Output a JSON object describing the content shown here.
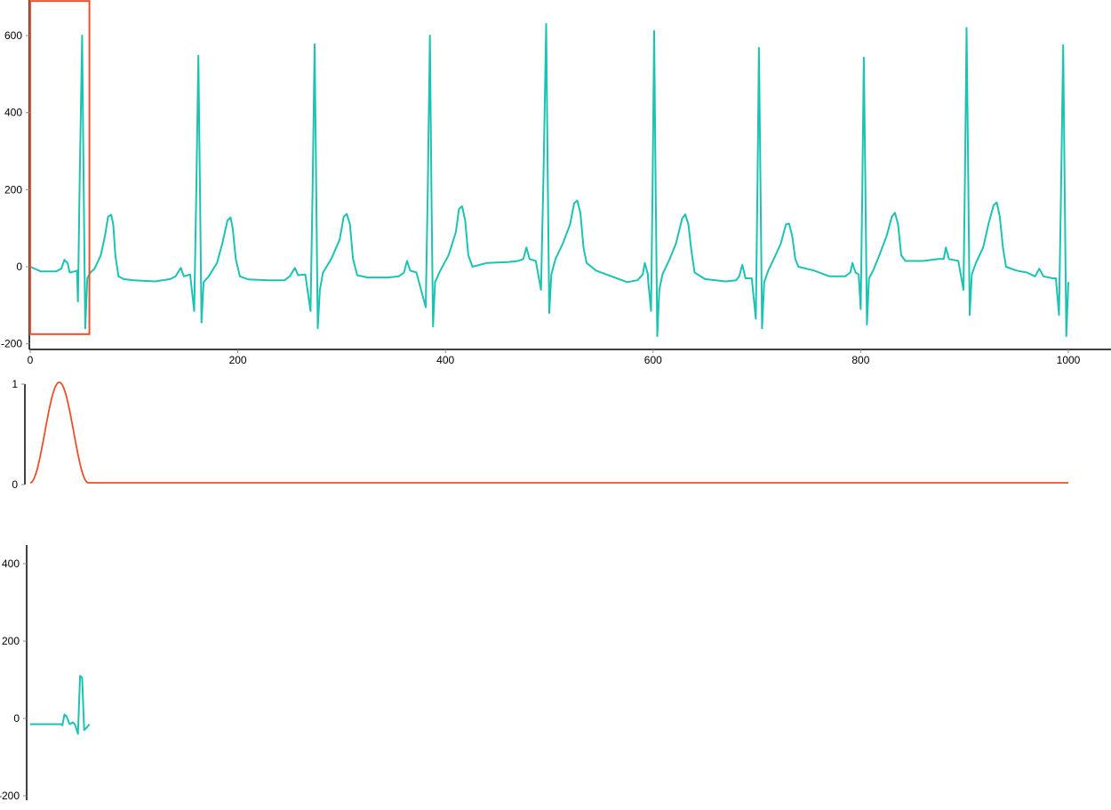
{
  "colors": {
    "signal": "#1cc3b2",
    "window": "#e8512b",
    "axis": "#000000"
  },
  "chart_data": [
    {
      "type": "line",
      "xlim": [
        0,
        1040
      ],
      "ylim": [
        -215,
        692
      ],
      "xticks": [
        0,
        200,
        400,
        600,
        800,
        1000
      ],
      "yticks": [
        -200,
        0,
        200,
        400,
        600
      ],
      "grid": false,
      "window_box": {
        "x": [
          0,
          57
        ],
        "y": [
          -175,
          692
        ]
      },
      "series": [
        {
          "points": [
            [
              0,
              0
            ],
            [
              10,
              -12
            ],
            [
              25,
              -12
            ],
            [
              30,
              -5
            ],
            [
              33,
              18
            ],
            [
              36,
              10
            ],
            [
              38,
              -15
            ],
            [
              43,
              -12
            ],
            [
              45,
              -10
            ],
            [
              46,
              -90
            ],
            [
              47.5,
              200
            ],
            [
              50,
              600
            ],
            [
              51.5,
              200
            ],
            [
              53,
              -160
            ],
            [
              55,
              -30
            ],
            [
              58,
              -15
            ],
            [
              62,
              -5
            ],
            [
              68,
              30
            ],
            [
              72,
              80
            ],
            [
              75,
              130
            ],
            [
              78,
              135
            ],
            [
              80,
              110
            ],
            [
              82,
              30
            ],
            [
              85,
              -25
            ],
            [
              90,
              -32
            ],
            [
              100,
              -35
            ],
            [
              120,
              -38
            ],
            [
              135,
              -32
            ],
            [
              140,
              -25
            ],
            [
              145,
              -3
            ],
            [
              148,
              -25
            ],
            [
              154,
              -20
            ],
            [
              158,
              -115
            ],
            [
              160,
              200
            ],
            [
              162,
              548
            ],
            [
              163.5,
              200
            ],
            [
              165,
              -145
            ],
            [
              167,
              -40
            ],
            [
              172,
              -25
            ],
            [
              180,
              10
            ],
            [
              185,
              60
            ],
            [
              190,
              120
            ],
            [
              193,
              128
            ],
            [
              195,
              100
            ],
            [
              198,
              20
            ],
            [
              202,
              -25
            ],
            [
              210,
              -33
            ],
            [
              230,
              -35
            ],
            [
              245,
              -35
            ],
            [
              250,
              -25
            ],
            [
              255,
              -3
            ],
            [
              258,
              -22
            ],
            [
              265,
              -20
            ],
            [
              270,
              -115
            ],
            [
              272,
              200
            ],
            [
              274,
              578
            ],
            [
              275.5,
              200
            ],
            [
              277,
              -160
            ],
            [
              279,
              -60
            ],
            [
              282,
              -15
            ],
            [
              290,
              20
            ],
            [
              298,
              70
            ],
            [
              302,
              130
            ],
            [
              305,
              137
            ],
            [
              308,
              110
            ],
            [
              311,
              20
            ],
            [
              315,
              -22
            ],
            [
              325,
              -28
            ],
            [
              345,
              -28
            ],
            [
              355,
              -25
            ],
            [
              360,
              -15
            ],
            [
              363,
              15
            ],
            [
              366,
              -10
            ],
            [
              372,
              -15
            ],
            [
              381,
              -105
            ],
            [
              383,
              200
            ],
            [
              385,
              600
            ],
            [
              386.5,
              200
            ],
            [
              388,
              -155
            ],
            [
              390,
              -40
            ],
            [
              395,
              -10
            ],
            [
              403,
              30
            ],
            [
              410,
              90
            ],
            [
              413,
              150
            ],
            [
              416,
              157
            ],
            [
              419,
              120
            ],
            [
              422,
              30
            ],
            [
              426,
              0
            ],
            [
              440,
              10
            ],
            [
              460,
              12
            ],
            [
              470,
              15
            ],
            [
              475,
              20
            ],
            [
              478,
              50
            ],
            [
              481,
              20
            ],
            [
              487,
              15
            ],
            [
              492,
              -60
            ],
            [
              494.5,
              250
            ],
            [
              497,
              630
            ],
            [
              498.5,
              250
            ],
            [
              500,
              -120
            ],
            [
              502,
              -20
            ],
            [
              506,
              20
            ],
            [
              513,
              60
            ],
            [
              520,
              110
            ],
            [
              524,
              165
            ],
            [
              527,
              172
            ],
            [
              530,
              140
            ],
            [
              533,
              50
            ],
            [
              536,
              10
            ],
            [
              545,
              -10
            ],
            [
              560,
              -25
            ],
            [
              575,
              -40
            ],
            [
              585,
              -35
            ],
            [
              590,
              -20
            ],
            [
              592,
              10
            ],
            [
              595,
              -20
            ],
            [
              595,
              -30
            ],
            [
              598,
              -115
            ],
            [
              599.5,
              200
            ],
            [
              601,
              612
            ],
            [
              602.5,
              200
            ],
            [
              604,
              -180
            ],
            [
              606,
              -60
            ],
            [
              609,
              -20
            ],
            [
              616,
              20
            ],
            [
              622,
              60
            ],
            [
              628,
              125
            ],
            [
              631,
              136
            ],
            [
              634,
              110
            ],
            [
              637,
              40
            ],
            [
              640,
              -15
            ],
            [
              650,
              -32
            ],
            [
              670,
              -38
            ],
            [
              680,
              -35
            ],
            [
              683,
              -25
            ],
            [
              686,
              5
            ],
            [
              689,
              -30
            ],
            [
              695,
              -30
            ],
            [
              699,
              -135
            ],
            [
              700.5,
              200
            ],
            [
              702,
              568
            ],
            [
              703.5,
              200
            ],
            [
              705,
              -160
            ],
            [
              707,
              -40
            ],
            [
              711,
              -10
            ],
            [
              718,
              30
            ],
            [
              723,
              60
            ],
            [
              728,
              110
            ],
            [
              731,
              112
            ],
            [
              734,
              80
            ],
            [
              737,
              20
            ],
            [
              740,
              0
            ],
            [
              755,
              -10
            ],
            [
              770,
              -25
            ],
            [
              785,
              -25
            ],
            [
              790,
              -15
            ],
            [
              792,
              10
            ],
            [
              795,
              -15
            ],
            [
              798,
              -20
            ],
            [
              800,
              -110
            ],
            [
              801.5,
              200
            ],
            [
              803,
              543
            ],
            [
              804.5,
              200
            ],
            [
              806,
              -150
            ],
            [
              808,
              -30
            ],
            [
              812,
              -10
            ],
            [
              818,
              30
            ],
            [
              825,
              80
            ],
            [
              830,
              130
            ],
            [
              833,
              140
            ],
            [
              836,
              110
            ],
            [
              839,
              30
            ],
            [
              843,
              15
            ],
            [
              860,
              15
            ],
            [
              875,
              20
            ],
            [
              880,
              20
            ],
            [
              882,
              50
            ],
            [
              885,
              20
            ],
            [
              894,
              15
            ],
            [
              899,
              -60
            ],
            [
              900.5,
              250
            ],
            [
              902,
              620
            ],
            [
              903.5,
              250
            ],
            [
              905,
              -125
            ],
            [
              907,
              -20
            ],
            [
              911,
              10
            ],
            [
              918,
              50
            ],
            [
              923,
              110
            ],
            [
              928,
              160
            ],
            [
              931,
              167
            ],
            [
              934,
              130
            ],
            [
              937,
              50
            ],
            [
              940,
              0
            ],
            [
              950,
              -10
            ],
            [
              960,
              -15
            ],
            [
              968,
              -25
            ],
            [
              972,
              -5
            ],
            [
              976,
              -25
            ],
            [
              985,
              -30
            ],
            [
              988,
              -30
            ],
            [
              991,
              -125
            ],
            [
              993,
              200
            ],
            [
              995,
              575
            ],
            [
              996.5,
              200
            ],
            [
              998,
              -180
            ],
            [
              1000,
              -40
            ]
          ]
        }
      ]
    },
    {
      "type": "line",
      "xlim": [
        0,
        1040
      ],
      "ylim": [
        0,
        1
      ],
      "yticks": [
        0,
        1
      ],
      "grid": false,
      "window": {
        "shape": "hann",
        "start": 0,
        "end": 56,
        "x_end": 1000
      }
    },
    {
      "type": "line",
      "xlim": [
        0,
        1040
      ],
      "ylim": [
        -215,
        445
      ],
      "yticks": [
        -200,
        0,
        200,
        400
      ],
      "grid": false,
      "series": [
        {
          "points": [
            [
              0,
              -15
            ],
            [
              30,
              -15
            ],
            [
              31,
              -18
            ],
            [
              33,
              10
            ],
            [
              35,
              5
            ],
            [
              38,
              -15
            ],
            [
              41,
              -10
            ],
            [
              43,
              -15
            ],
            [
              46,
              -40
            ],
            [
              48,
              110
            ],
            [
              50,
              105
            ],
            [
              52,
              -30
            ],
            [
              54,
              -25
            ],
            [
              57,
              -15
            ]
          ]
        }
      ]
    }
  ]
}
